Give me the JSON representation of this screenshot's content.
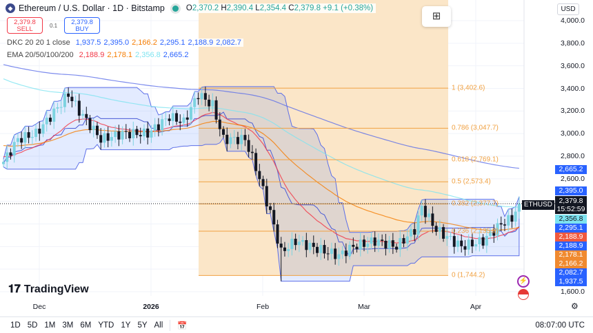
{
  "header": {
    "symbol_title": "Ethereum / U.S. Dollar · 1D · Bitstamp",
    "open_label": "O",
    "open": "2,370.2",
    "high_label": "H",
    "high": "2,390.4",
    "low_label": "L",
    "low": "2,354.4",
    "close_label": "C",
    "close": "2,379.8",
    "change": "+9.1 (+0.38%)"
  },
  "trade": {
    "sell_price": "2,379.8",
    "sell_label": "SELL",
    "qty": "0.1",
    "buy_price": "2,379.8",
    "buy_label": "BUY"
  },
  "indicators": {
    "dkc": {
      "label": "DKC 20 20 1 close",
      "values": [
        "1,937.5",
        "2,395.0",
        "2,166.2",
        "2,295.1",
        "2,188.9",
        "2,082.7"
      ],
      "colors": [
        "#2962ff",
        "#2962ff",
        "#f57c00",
        "#2962ff",
        "#2962ff",
        "#2962ff"
      ]
    },
    "ema": {
      "label": "EMA 20/50/100/200",
      "values": [
        "2,188.9",
        "2,178.1",
        "2,356.8",
        "2,665.2"
      ],
      "colors": [
        "#f23645",
        "#f57c00",
        "#7de3f0",
        "#2962ff"
      ]
    }
  },
  "currency": "USD",
  "price_axis": [
    "4,000.0",
    "3,800.0",
    "3,600.0",
    "3,400.0",
    "3,200.0",
    "3,000.0",
    "2,800.0",
    "2,600.0",
    "1,600.0"
  ],
  "price_badges": [
    {
      "value": "2,665.2",
      "color": "#2962ff",
      "price": 2665.2
    },
    {
      "value": "2,395.0",
      "color": "#2962ff",
      "price": 2395.0
    },
    {
      "value": "2,356.8",
      "color": "#7de3f0",
      "price": 2330
    },
    {
      "value": "2,295.1",
      "color": "#2962ff",
      "price": 2295.1
    },
    {
      "value": "2,188.9",
      "color": "#f0593e",
      "price": 2222
    },
    {
      "value": "2,188.9",
      "color": "#2962ff",
      "price": 2148
    },
    {
      "value": "2,178.1",
      "color": "#f08a30",
      "price": 2074
    },
    {
      "value": "2,166.2",
      "color": "#f08a30",
      "price": 2000
    },
    {
      "value": "2,082.7",
      "color": "#2962ff",
      "price": 1926
    },
    {
      "value": "1,937.5",
      "color": "#2962ff",
      "price": 1852
    }
  ],
  "last_price": {
    "symbol": "ETHUSD",
    "price": "2,379.8",
    "countdown": "15:52:59"
  },
  "fib_levels": [
    {
      "label": "1 (3,402.6)",
      "price": 3402.6
    },
    {
      "label": "0.786 (3,047.7)",
      "price": 3047.7
    },
    {
      "label": "0.618 (2,769.1)",
      "price": 2769.1
    },
    {
      "label": "0.5 (2,573.4)",
      "price": 2573.4
    },
    {
      "label": "0.382 (2,377.7)",
      "price": 2377.7
    },
    {
      "label": "0.236 (2,135.8)",
      "price": 2135.8
    },
    {
      "label": "0 (1,744.2)",
      "price": 1744.2
    }
  ],
  "time_axis": [
    "Dec",
    "2026",
    "Feb",
    "Mar",
    "Apr"
  ],
  "ranges": [
    "1D",
    "5D",
    "1M",
    "3M",
    "6M",
    "YTD",
    "1Y",
    "5Y",
    "All"
  ],
  "clock": "08:07:00 UTC",
  "brand": "TradingView",
  "colors": {
    "up": "#26a69a",
    "up_light": "#7dd3e0",
    "down": "#131722",
    "fib": "#f0a040",
    "fib_zone": "#fbe6c8",
    "band": "#2962ff"
  },
  "chart_data": {
    "type": "candlestick",
    "ylim": [
      1600,
      4000
    ],
    "price_path": [
      [
        "2025-11-21",
        2750
      ],
      [
        "2025-11-25",
        2950
      ],
      [
        "2025-11-30",
        3000
      ],
      [
        "2025-12-04",
        3150
      ],
      [
        "2025-12-09",
        3350
      ],
      [
        "2025-12-12",
        3200
      ],
      [
        "2025-12-18",
        2950
      ],
      [
        "2025-12-24",
        3000
      ],
      [
        "2025-12-31",
        3000
      ],
      [
        "2026-01-06",
        3150
      ],
      [
        "2026-01-10",
        3100
      ],
      [
        "2026-01-14",
        3350
      ],
      [
        "2026-01-18",
        3250
      ],
      [
        "2026-01-21",
        2950
      ],
      [
        "2026-01-27",
        2950
      ],
      [
        "2026-01-30",
        2700
      ],
      [
        "2026-02-03",
        2300
      ],
      [
        "2026-02-06",
        1950
      ],
      [
        "2026-02-10",
        2050
      ],
      [
        "2026-02-16",
        1980
      ],
      [
        "2026-02-22",
        1920
      ],
      [
        "2026-02-26",
        2000
      ],
      [
        "2026-03-04",
        2050
      ],
      [
        "2026-03-10",
        2000
      ],
      [
        "2026-03-15",
        2150
      ],
      [
        "2026-03-17",
        2350
      ],
      [
        "2026-03-21",
        2150
      ],
      [
        "2026-03-28",
        2000
      ],
      [
        "2026-04-03",
        2050
      ],
      [
        "2026-04-08",
        2200
      ],
      [
        "2026-04-11",
        2250
      ],
      [
        "2026-04-13",
        2379.8
      ]
    ]
  }
}
